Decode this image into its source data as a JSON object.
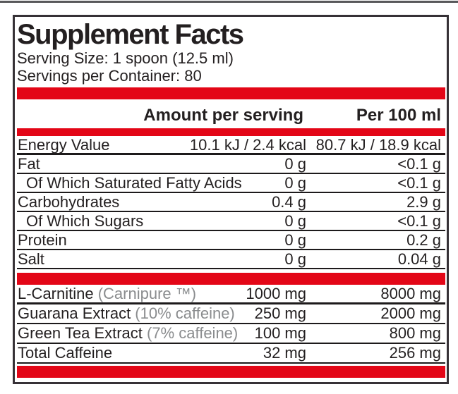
{
  "label": {
    "title": "Supplement Facts",
    "serving_size": "Serving Size: 1 spoon (12.5 ml)",
    "servings_per_container": "Servings per Container: 80",
    "columns": {
      "amount_per_serving": "Amount per serving",
      "per_100ml": "Per 100 ml"
    },
    "nutrition_rows": [
      {
        "name": "Energy Value",
        "note": "",
        "indent": false,
        "per_serving": "10.1 kJ / 2.4 kcal",
        "per_100ml": "80.7 kJ / 18.9 kcal"
      },
      {
        "name": "Fat",
        "note": "",
        "indent": false,
        "per_serving": "0 g",
        "per_100ml": "<0.1 g"
      },
      {
        "name": "Of Which Saturated Fatty Acids",
        "note": "",
        "indent": true,
        "per_serving": "0 g",
        "per_100ml": "<0.1 g"
      },
      {
        "name": "Carbohydrates",
        "note": "",
        "indent": false,
        "per_serving": "0.4 g",
        "per_100ml": "2.9 g"
      },
      {
        "name": "Of Which Sugars",
        "note": "",
        "indent": true,
        "per_serving": "0 g",
        "per_100ml": "<0.1 g"
      },
      {
        "name": "Protein",
        "note": "",
        "indent": false,
        "per_serving": "0 g",
        "per_100ml": "0.2 g"
      },
      {
        "name": "Salt",
        "note": "",
        "indent": false,
        "per_serving": "0 g",
        "per_100ml": "0.04 g"
      }
    ],
    "supplement_rows": [
      {
        "name": "L-Carnitine",
        "note": "(Carnipure ™)",
        "indent": false,
        "per_serving": "1000 mg",
        "per_100ml": "8000 mg"
      },
      {
        "name": "Guarana Extract",
        "note": "(10% caffeine)",
        "indent": false,
        "per_serving": "250 mg",
        "per_100ml": "2000 mg"
      },
      {
        "name": "Green Tea Extract",
        "note": "(7% caffeine)",
        "indent": false,
        "per_serving": "100 mg",
        "per_100ml": "800 mg"
      },
      {
        "name": "Total Caffeine",
        "note": "",
        "indent": false,
        "per_serving": "32 mg",
        "per_100ml": "256 mg"
      }
    ],
    "colors": {
      "accent_red": "#e30617",
      "text": "#231f20",
      "muted_note": "#8a8c8e",
      "border": "#363136"
    }
  }
}
